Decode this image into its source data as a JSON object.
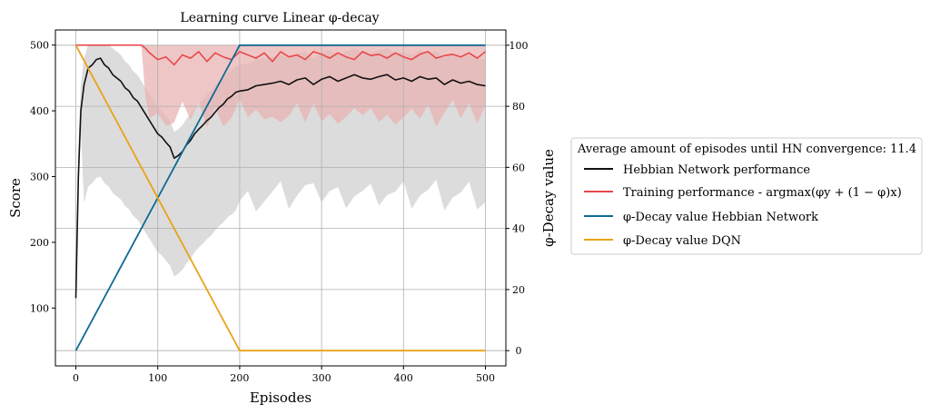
{
  "chart_data": {
    "type": "line",
    "title": "Learning curve Linear φ-decay",
    "xlabel": "Episodes",
    "ylabel": "Score",
    "y2label": "φ-Decay value",
    "xlim": [
      -25,
      525
    ],
    "ylim": [
      12,
      523
    ],
    "y2lim": [
      -5,
      105
    ],
    "xticks": [
      "0",
      "100",
      "200",
      "300",
      "400",
      "500"
    ],
    "yticks": [
      "100",
      "200",
      "300",
      "400",
      "500"
    ],
    "y2ticks": [
      "0",
      "20",
      "40",
      "60",
      "80",
      "100"
    ],
    "grid": true,
    "legend": {
      "position": "right",
      "title": "Average amount of episodes until HN convergence: 11.4",
      "entries": [
        "Hebbian Network performance",
        "Training performance - argmax(φy + (1 − φ)x)",
        "φ-Decay value Hebbian Network",
        "φ-Decay value DQN"
      ]
    },
    "colors": {
      "hebbian": "#111111",
      "training": "#e8474a",
      "training_band": "#e9b3b3",
      "hebbian_band": "#dcdcdc",
      "phi_hn": "#0f6a94",
      "phi_dqn": "#e8a316"
    },
    "series": [
      {
        "name": "Hebbian Network performance",
        "axis": "left",
        "x": [
          0,
          3,
          6,
          10,
          15,
          20,
          25,
          30,
          35,
          40,
          45,
          50,
          55,
          60,
          65,
          70,
          75,
          80,
          85,
          90,
          95,
          100,
          105,
          110,
          115,
          120,
          125,
          130,
          135,
          140,
          145,
          150,
          155,
          160,
          165,
          170,
          175,
          180,
          185,
          190,
          195,
          200,
          210,
          220,
          230,
          240,
          250,
          260,
          270,
          280,
          290,
          300,
          310,
          320,
          330,
          340,
          350,
          360,
          370,
          380,
          390,
          400,
          410,
          420,
          430,
          440,
          450,
          460,
          470,
          480,
          490,
          500
        ],
        "y": [
          115,
          300,
          400,
          440,
          465,
          470,
          478,
          480,
          470,
          465,
          455,
          450,
          445,
          435,
          430,
          420,
          415,
          405,
          395,
          385,
          375,
          365,
          360,
          352,
          345,
          328,
          332,
          338,
          348,
          355,
          365,
          372,
          378,
          385,
          390,
          398,
          405,
          410,
          418,
          422,
          428,
          430,
          432,
          438,
          440,
          442,
          445,
          440,
          447,
          450,
          440,
          448,
          452,
          445,
          450,
          455,
          450,
          448,
          452,
          455,
          447,
          450,
          445,
          452,
          448,
          450,
          440,
          447,
          442,
          445,
          440,
          438
        ]
      },
      {
        "name": "Training performance - argmax(φy + (1 − φ)x)",
        "axis": "left",
        "x": [
          0,
          80,
          85,
          90,
          100,
          110,
          120,
          130,
          140,
          150,
          160,
          170,
          180,
          190,
          200,
          210,
          220,
          230,
          240,
          250,
          260,
          270,
          280,
          290,
          300,
          310,
          320,
          330,
          340,
          350,
          360,
          370,
          380,
          390,
          400,
          410,
          420,
          430,
          440,
          450,
          460,
          470,
          480,
          490,
          500
        ],
        "y": [
          500,
          500,
          495,
          488,
          478,
          482,
          470,
          485,
          480,
          490,
          475,
          488,
          482,
          478,
          490,
          485,
          480,
          488,
          475,
          490,
          482,
          485,
          478,
          490,
          486,
          480,
          488,
          482,
          478,
          490,
          484,
          486,
          480,
          488,
          482,
          478,
          486,
          490,
          480,
          484,
          486,
          482,
          488,
          480,
          490
        ]
      },
      {
        "name": "φ-Decay value Hebbian Network",
        "axis": "right",
        "x": [
          0,
          200,
          500
        ],
        "y": [
          0,
          100,
          100
        ]
      },
      {
        "name": "φ-Decay value DQN",
        "axis": "right",
        "x": [
          0,
          200,
          500
        ],
        "y": [
          100,
          0,
          0
        ]
      }
    ]
  }
}
